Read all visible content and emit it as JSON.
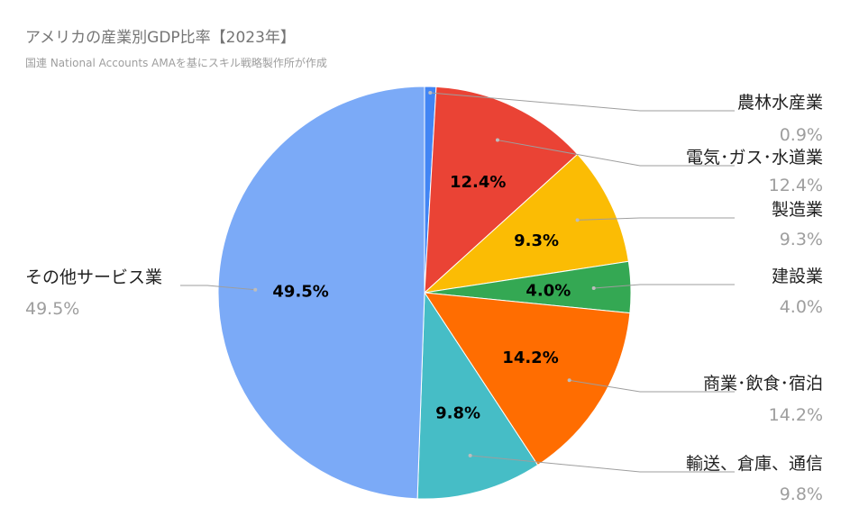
{
  "chart_data": {
    "type": "pie",
    "title": "アメリカの産業別GDP比率【2023年】",
    "subtitle": "国連 National Accounts AMAを基にスキル戦略製作所が作成",
    "unit": "%",
    "slices": [
      {
        "name": "農林水産業",
        "value": 0.9,
        "label": "0.9%",
        "color": "#4285f4"
      },
      {
        "name": "電気･ガス･水道業",
        "value": 12.4,
        "label": "12.4%",
        "color": "#ea4335"
      },
      {
        "name": "製造業",
        "value": 9.3,
        "label": "9.3%",
        "color": "#fbbc04"
      },
      {
        "name": "建設業",
        "value": 4.0,
        "label": "4.0%",
        "color": "#34a853"
      },
      {
        "name": "商業･飲食･宿泊",
        "value": 14.2,
        "label": "14.2%",
        "color": "#ff6d01"
      },
      {
        "name": "輸送、倉庫、通信",
        "value": 9.8,
        "label": "9.8%",
        "color": "#46bdc6"
      },
      {
        "name": "その他サービス業",
        "value": 49.5,
        "label": "49.5%",
        "color": "#7baaf7"
      }
    ],
    "start_angle": "12 o'clock",
    "direction": "clockwise",
    "legend": "none"
  }
}
